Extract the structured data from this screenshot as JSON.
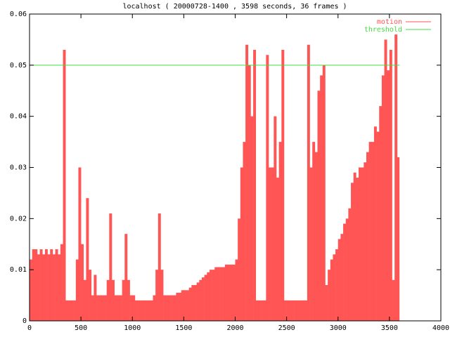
{
  "chart_data": {
    "type": "impulses",
    "title": "localhost ( 20000728-1400 , 3598 seconds, 36 frames )",
    "xlim": [
      0,
      4000
    ],
    "ylim": [
      0,
      0.06
    ],
    "xticks": [
      0,
      500,
      1000,
      1500,
      2000,
      2500,
      3000,
      3500,
      4000
    ],
    "yticks": [
      0,
      0.01,
      0.02,
      0.03,
      0.04,
      0.05,
      0.06
    ],
    "legend": "upper right",
    "series": [
      {
        "name": "motion",
        "color": "#ff5555",
        "style": "impulses",
        "x": [
          0,
          25,
          50,
          75,
          100,
          125,
          150,
          175,
          200,
          225,
          250,
          275,
          300,
          325,
          350,
          375,
          400,
          425,
          450,
          475,
          500,
          525,
          550,
          575,
          600,
          625,
          650,
          675,
          700,
          725,
          750,
          775,
          800,
          825,
          850,
          875,
          900,
          925,
          950,
          975,
          1000,
          1025,
          1050,
          1075,
          1100,
          1125,
          1150,
          1175,
          1200,
          1225,
          1250,
          1275,
          1300,
          1325,
          1350,
          1375,
          1400,
          1425,
          1450,
          1475,
          1500,
          1525,
          1550,
          1575,
          1600,
          1625,
          1650,
          1675,
          1700,
          1725,
          1750,
          1775,
          1800,
          1825,
          1850,
          1875,
          1900,
          1925,
          1950,
          1975,
          2000,
          2025,
          2050,
          2075,
          2100,
          2125,
          2150,
          2175,
          2200,
          2225,
          2250,
          2275,
          2300,
          2325,
          2350,
          2375,
          2400,
          2425,
          2450,
          2475,
          2500,
          2525,
          2550,
          2575,
          2600,
          2625,
          2650,
          2675,
          2700,
          2725,
          2750,
          2775,
          2800,
          2825,
          2850,
          2875,
          2900,
          2925,
          2950,
          2975,
          3000,
          3025,
          3050,
          3075,
          3100,
          3125,
          3150,
          3175,
          3200,
          3225,
          3250,
          3275,
          3300,
          3325,
          3350,
          3375,
          3400,
          3425,
          3450,
          3475,
          3500,
          3525,
          3550,
          3575
        ],
        "values": [
          0.012,
          0.014,
          0.014,
          0.013,
          0.014,
          0.013,
          0.014,
          0.013,
          0.014,
          0.013,
          0.014,
          0.013,
          0.015,
          0.053,
          0.004,
          0.004,
          0.004,
          0.004,
          0.012,
          0.03,
          0.015,
          0.008,
          0.024,
          0.01,
          0.005,
          0.009,
          0.005,
          0.005,
          0.005,
          0.005,
          0.008,
          0.021,
          0.008,
          0.005,
          0.005,
          0.005,
          0.008,
          0.017,
          0.008,
          0.005,
          0.005,
          0.004,
          0.004,
          0.004,
          0.004,
          0.004,
          0.004,
          0.004,
          0.005,
          0.01,
          0.021,
          0.01,
          0.005,
          0.005,
          0.005,
          0.005,
          0.005,
          0.0055,
          0.0055,
          0.006,
          0.006,
          0.006,
          0.0065,
          0.007,
          0.007,
          0.0075,
          0.008,
          0.0085,
          0.009,
          0.0095,
          0.01,
          0.01,
          0.0105,
          0.0105,
          0.0105,
          0.0105,
          0.011,
          0.011,
          0.011,
          0.011,
          0.012,
          0.02,
          0.03,
          0.035,
          0.054,
          0.05,
          0.04,
          0.053,
          0.004,
          0.004,
          0.004,
          0.004,
          0.052,
          0.03,
          0.03,
          0.04,
          0.028,
          0.035,
          0.053,
          0.004,
          0.004,
          0.004,
          0.004,
          0.004,
          0.004,
          0.004,
          0.004,
          0.004,
          0.054,
          0.03,
          0.035,
          0.033,
          0.045,
          0.048,
          0.05,
          0.007,
          0.01,
          0.012,
          0.013,
          0.014,
          0.016,
          0.017,
          0.019,
          0.02,
          0.022,
          0.027,
          0.029,
          0.028,
          0.03,
          0.03,
          0.031,
          0.033,
          0.035,
          0.035,
          0.038,
          0.037,
          0.042,
          0.048,
          0.055,
          0.049,
          0.053,
          0.008,
          0.056,
          0.032
        ]
      },
      {
        "name": "threshold",
        "color": "#44dd44",
        "style": "line",
        "x": [
          0,
          3598
        ],
        "values": [
          0.05,
          0.05
        ]
      }
    ]
  }
}
